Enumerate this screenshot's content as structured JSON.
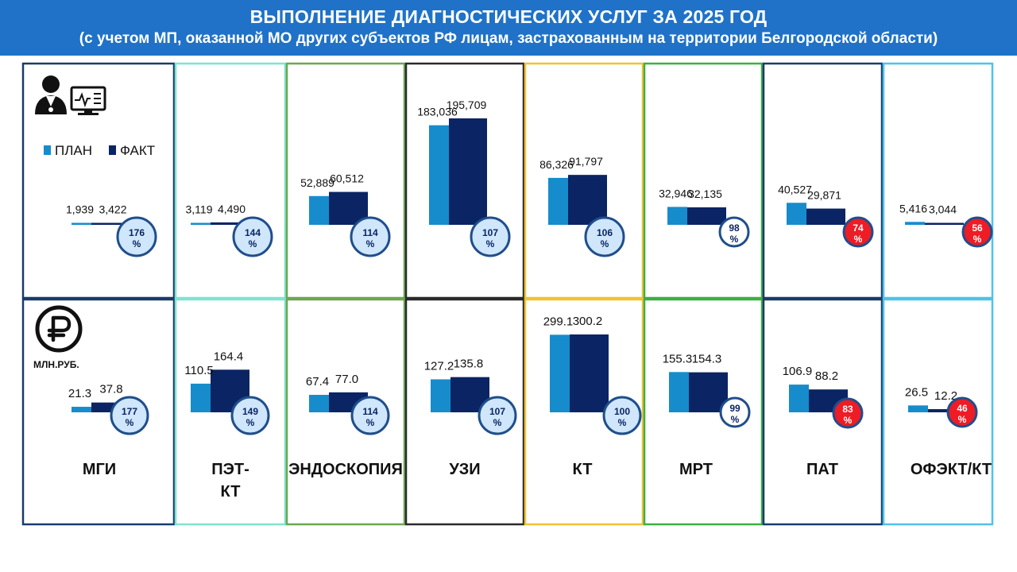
{
  "header": {
    "title": "ВЫПОЛНЕНИЕ ДИАГНОСТИЧЕСКИХ УСЛУГ ЗА 2025 ГОД",
    "subtitle": "(с учетом МП, оказанной МО других субъектов РФ лицам, застрахованным на территории Белгородской области)"
  },
  "legend": {
    "plan": "ПЛАН",
    "fact": "ФАКТ"
  },
  "money_unit": "МЛН.РУБ.",
  "pct_sign": "%",
  "colors": {
    "header_bg": "#1f72c8",
    "plan": "#168ccc",
    "fact": "#0b2463",
    "badge_ok_fill": "#cfe6fb",
    "badge_ok_stroke": "#1f4e8c",
    "badge_low_fill": "#ee1c24",
    "badge_low_stroke": "#1f4e8c"
  },
  "chart_data": [
    {
      "type": "bar",
      "measure": "services",
      "categories": [
        "МГИ",
        "ПЭТ-КТ",
        "ЭНДОСКОПИЯ",
        "УЗИ",
        "КТ",
        "МРТ",
        "ПАТ",
        "ОФЭКТ/КТ"
      ],
      "series": [
        {
          "name": "ПЛАН",
          "values": [
            1939,
            3119,
            52889,
            183036,
            86326,
            32946,
            40527,
            5416
          ]
        },
        {
          "name": "ФАКТ",
          "values": [
            3422,
            4490,
            60512,
            195709,
            91797,
            32135,
            29871,
            3044
          ]
        }
      ],
      "labels_plan": [
        "1,939",
        "3,119",
        "52,889",
        "183,036",
        "86,326",
        "32,946",
        "40,527",
        "5,416"
      ],
      "labels_fact": [
        "3,422",
        "4,490",
        "60,512",
        "195,709",
        "91,797",
        "32,135",
        "29,871",
        "3,044"
      ],
      "percent": [
        176,
        144,
        114,
        107,
        106,
        98,
        74,
        56
      ]
    },
    {
      "type": "bar",
      "measure": "money",
      "unit": "МЛН.РУБ.",
      "categories": [
        "МГИ",
        "ПЭТ-КТ",
        "ЭНДОСКОПИЯ",
        "УЗИ",
        "КТ",
        "МРТ",
        "ПАТ",
        "ОФЭКТ/КТ"
      ],
      "series": [
        {
          "name": "ПЛАН",
          "values": [
            21.3,
            110.5,
            67.4,
            127.2,
            299.1,
            155.3,
            106.9,
            26.5
          ]
        },
        {
          "name": "ФАКТ",
          "values": [
            37.8,
            164.4,
            77.0,
            135.8,
            300.2,
            154.3,
            88.2,
            12.2
          ]
        }
      ],
      "labels_plan": [
        "21.3",
        "110.5",
        "67.4",
        "127.2",
        "299.1",
        "155.3",
        "106.9",
        "26.5"
      ],
      "labels_fact": [
        "37.8",
        "164.4",
        "77.0",
        "135.8",
        "300.2",
        "154.3",
        "88.2",
        "12.2"
      ],
      "percent": [
        177,
        149,
        114,
        107,
        100,
        99,
        83,
        46
      ]
    }
  ],
  "category_labels": [
    [
      "МГИ"
    ],
    [
      "ПЭТ-",
      "КТ"
    ],
    [
      "ЭНДОСКОПИЯ"
    ],
    [
      "УЗИ"
    ],
    [
      "КТ"
    ],
    [
      "МРТ"
    ],
    [
      "ПАТ"
    ],
    [
      "ОФЭКТ/КТ"
    ]
  ]
}
